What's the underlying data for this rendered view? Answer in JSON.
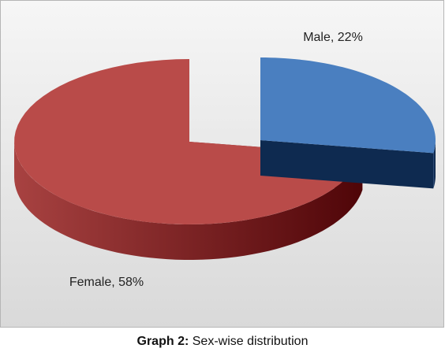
{
  "chart_data": {
    "type": "pie",
    "values": [
      22,
      58
    ],
    "value_labels": [
      "Male, 22%",
      "Female, 58%"
    ],
    "colors": [
      "#4a7fc0",
      "#b94b49"
    ],
    "side_colors": [
      "#0e2a50",
      "#7a1c1c"
    ],
    "caption_label": "Graph 2:",
    "caption": "Sex-wise distribution"
  }
}
